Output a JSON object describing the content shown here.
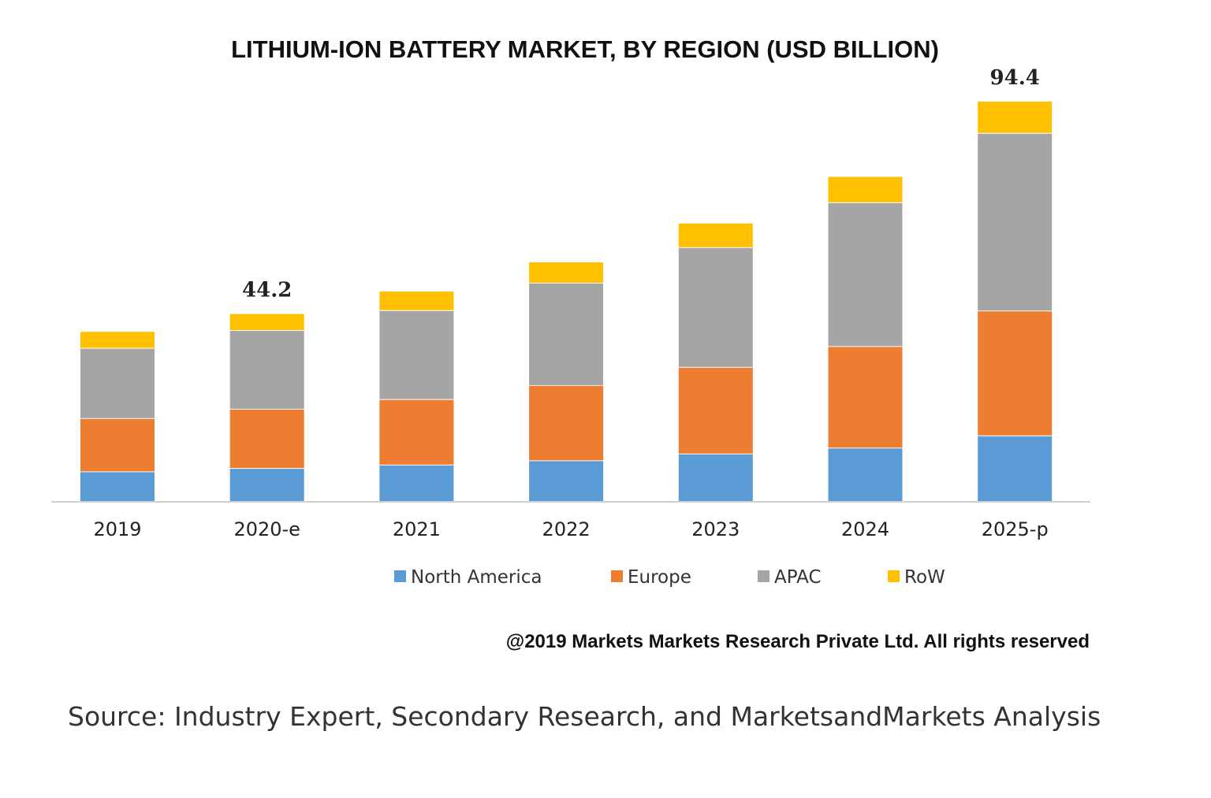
{
  "chart_data": {
    "type": "bar",
    "stacked": true,
    "title": "LITHIUM-ION BATTERY MARKET, BY REGION (USD BILLION)",
    "xlabel": "",
    "ylabel": "",
    "categories": [
      "2019",
      "2020-e",
      "2021",
      "2022",
      "2023",
      "2024",
      "2025-p"
    ],
    "series": [
      {
        "name": "North America",
        "color": "#5b9bd5",
        "values": [
          7.0,
          7.8,
          8.6,
          9.6,
          11.2,
          12.6,
          15.5
        ]
      },
      {
        "name": "Europe",
        "color": "#ed7d31",
        "values": [
          12.6,
          14.0,
          15.5,
          17.8,
          20.5,
          24.0,
          29.5
        ]
      },
      {
        "name": "APAC",
        "color": "#a5a5a5",
        "values": [
          16.6,
          18.6,
          21.0,
          24.2,
          28.3,
          34.0,
          42.0
        ]
      },
      {
        "name": "RoW",
        "color": "#ffc000",
        "values": [
          3.8,
          3.8,
          4.4,
          4.8,
          5.6,
          6.0,
          7.4
        ]
      }
    ],
    "data_labels": [
      {
        "category": "2020-e",
        "text": "44.2"
      },
      {
        "category": "2025-p",
        "text": "94.4"
      }
    ],
    "ylim": [
      0,
      94.4
    ],
    "grid": false,
    "legend_position": "bottom"
  },
  "copyright": "@2019 Markets Markets Research Private Ltd. All rights reserved",
  "source": "Source: Industry Expert, Secondary Research, and MarketsandMarkets Analysis"
}
